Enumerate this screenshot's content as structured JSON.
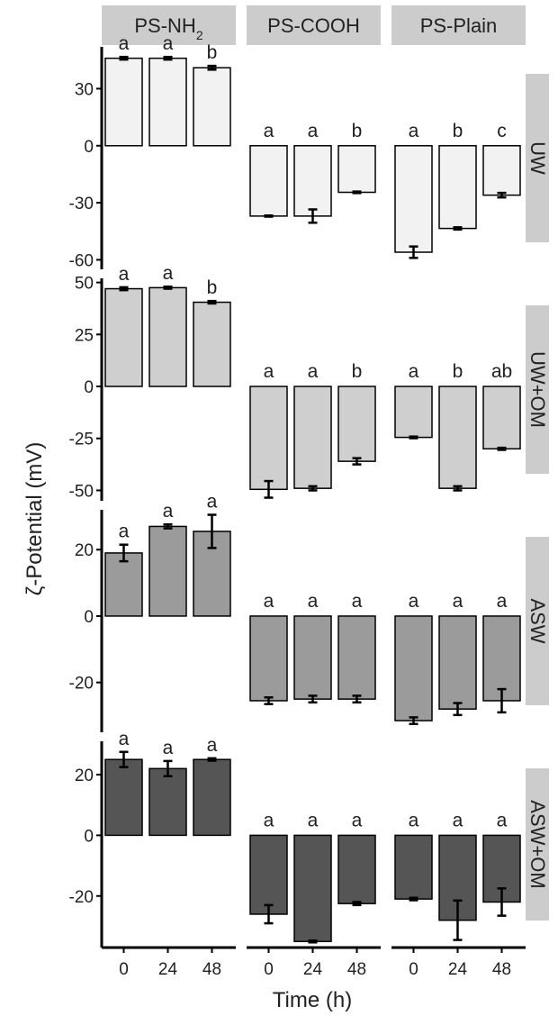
{
  "chart_data": {
    "type": "bar",
    "ylabel": "ζ-Potential (mV)",
    "xlabel": "Time (h)",
    "categories": [
      "0",
      "24",
      "48"
    ],
    "columns": [
      {
        "label": "PS-NH",
        "subscript": "2"
      },
      {
        "label": "PS-COOH",
        "subscript": ""
      },
      {
        "label": "PS-Plain",
        "subscript": ""
      }
    ],
    "rows": [
      {
        "label": "UW",
        "color": "#f2f2f2",
        "ylim": [
          -65,
          52
        ],
        "yticks": [
          30,
          0,
          -30,
          -60
        ],
        "panels": [
          {
            "values": [
              46,
              46,
              41
            ],
            "errors": [
              0.7,
              0.7,
              1.0
            ],
            "letters": [
              "a",
              "a",
              "b"
            ]
          },
          {
            "values": [
              -37,
              -37,
              -24.5
            ],
            "errors": [
              0.3,
              3.5,
              0.4
            ],
            "letters": [
              "a",
              "a",
              "b"
            ]
          },
          {
            "values": [
              -56,
              -43.5,
              -26
            ],
            "errors": [
              3,
              0.6,
              1.2
            ],
            "letters": [
              "a",
              "b",
              "c"
            ]
          }
        ]
      },
      {
        "label": "UW+OM",
        "color": "#cfcfcf",
        "ylim": [
          -55,
          52
        ],
        "yticks": [
          50,
          25,
          0,
          -25,
          -50
        ],
        "panels": [
          {
            "values": [
              47,
              47.5,
              40.5
            ],
            "errors": [
              0.7,
              0.5,
              0.6
            ],
            "letters": [
              "a",
              "a",
              "b"
            ]
          },
          {
            "values": [
              -49.5,
              -49,
              -36
            ],
            "errors": [
              4,
              1,
              1.5
            ],
            "letters": [
              "a",
              "a",
              "b"
            ]
          },
          {
            "values": [
              -24.5,
              -49,
              -30
            ],
            "errors": [
              0.4,
              1,
              0.5
            ],
            "letters": [
              "a",
              "b",
              "ab"
            ]
          }
        ]
      },
      {
        "label": "ASW",
        "color": "#9b9b9b",
        "ylim": [
          -35,
          32
        ],
        "yticks": [
          20,
          0,
          -20
        ],
        "panels": [
          {
            "values": [
              19,
              27,
              25.5
            ],
            "errors": [
              2.5,
              0.6,
              5
            ],
            "letters": [
              "a",
              "a",
              "a"
            ]
          },
          {
            "values": [
              -25.5,
              -25,
              -25
            ],
            "errors": [
              1,
              1,
              1
            ],
            "letters": [
              "a",
              "a",
              "a"
            ]
          },
          {
            "values": [
              -31.5,
              -28,
              -25.5
            ],
            "errors": [
              1,
              1.8,
              3.5
            ],
            "letters": [
              "a",
              "a",
              "a"
            ]
          }
        ]
      },
      {
        "label": "ASW+OM",
        "color": "#555555",
        "ylim": [
          -37,
          31
        ],
        "yticks": [
          20,
          0,
          -20
        ],
        "panels": [
          {
            "values": [
              25,
              22,
              25
            ],
            "errors": [
              2.5,
              2.5,
              0.4
            ],
            "letters": [
              "a",
              "a",
              "a"
            ]
          },
          {
            "values": [
              -26,
              -35,
              -22.5
            ],
            "errors": [
              3,
              0.3,
              0.5
            ],
            "letters": [
              "a",
              "a",
              "a"
            ]
          },
          {
            "values": [
              -21,
              -28,
              -22
            ],
            "errors": [
              0.4,
              6.5,
              4.5
            ],
            "letters": [
              "a",
              "a",
              "a"
            ]
          }
        ]
      }
    ]
  }
}
